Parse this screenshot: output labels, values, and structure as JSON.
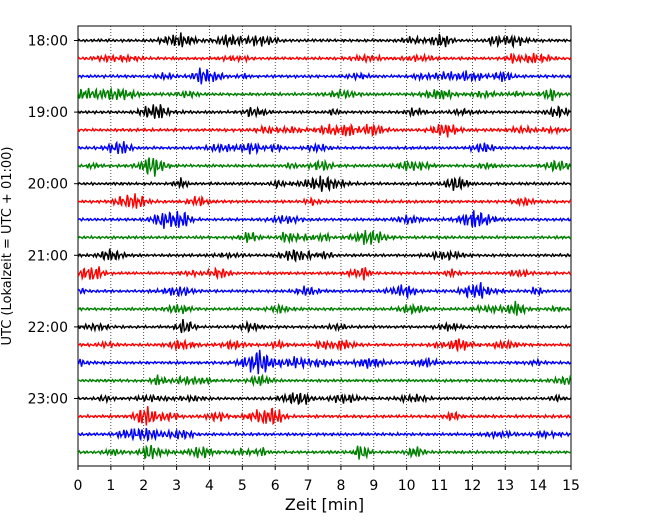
{
  "chart_data": {
    "type": "line",
    "title": "",
    "xlabel": "Zeit  [min]",
    "ylabel": "UTC (Lokalzeit = UTC + 01:00)",
    "xlim": [
      0,
      15
    ],
    "x_ticks": [
      "0",
      "1",
      "2",
      "3",
      "4",
      "5",
      "6",
      "7",
      "8",
      "9",
      "10",
      "11",
      "12",
      "13",
      "14",
      "15"
    ],
    "y_tick_labels": [
      "18:00",
      "19:00",
      "20:00",
      "21:00",
      "22:00",
      "23:00"
    ],
    "grid": "vertical dotted lines at each minute",
    "trace_start_times": [
      "18:00",
      "18:15",
      "18:30",
      "18:45",
      "19:00",
      "19:15",
      "19:30",
      "19:45",
      "20:00",
      "20:15",
      "20:30",
      "20:45",
      "21:00",
      "21:15",
      "21:30",
      "21:45",
      "22:00",
      "22:15",
      "22:30",
      "22:45",
      "23:00",
      "23:15",
      "23:30",
      "23:45"
    ],
    "trace_colors": [
      "#000000",
      "#ff0000",
      "#0000ff",
      "#008000"
    ],
    "trace_minutes_per_line": 15,
    "signal": "seismic noise, amplitude approx. 0.2 of line spacing"
  }
}
